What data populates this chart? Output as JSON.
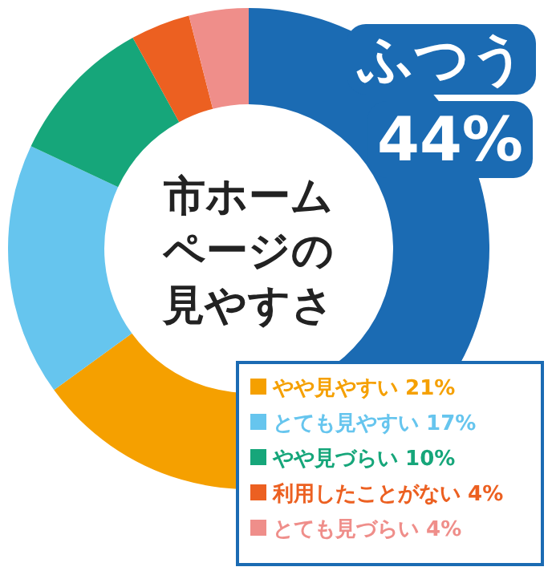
{
  "chart_data": {
    "type": "donut",
    "title": "市ホームページの見やすさ",
    "categories": [
      "ふつう",
      "やや見やすい",
      "とても見やすい",
      "やや見づらい",
      "利用したことがない",
      "とても見づらい"
    ],
    "values": [
      44,
      21,
      17,
      10,
      4,
      4
    ],
    "value_labels": [
      "44%",
      "21%",
      "17%",
      "10%",
      "4%",
      "4%"
    ],
    "colors": [
      "#1b6bb3",
      "#f5a000",
      "#66c5ee",
      "#16a67a",
      "#ec6021",
      "#ef8e8a"
    ],
    "legend": "bottom right"
  }
}
